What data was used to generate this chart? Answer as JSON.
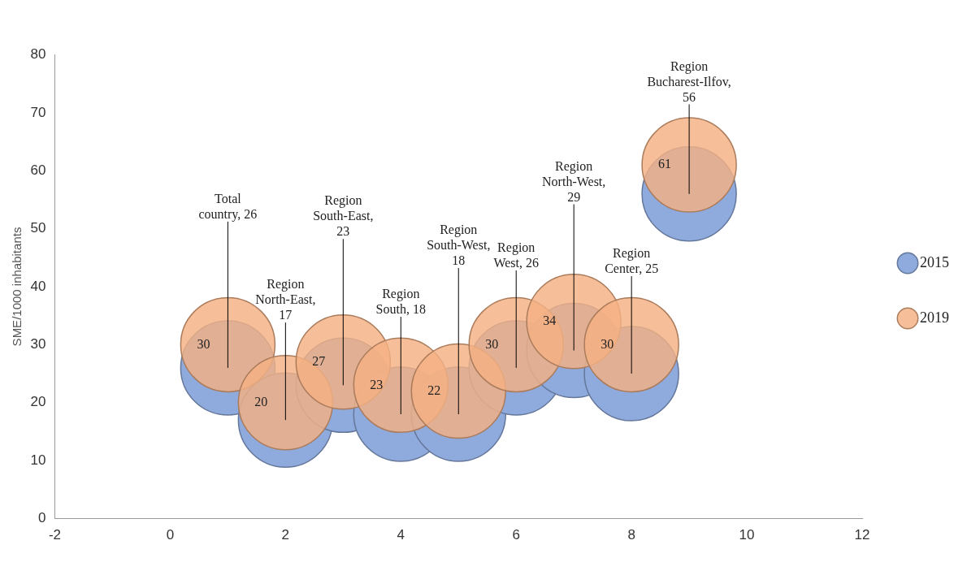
{
  "chart_data": {
    "type": "bubble",
    "ylabel": "SME/1000 inhabitants",
    "x": [
      1,
      2,
      3,
      4,
      5,
      6,
      7,
      8,
      9
    ],
    "xlim": [
      -2,
      12
    ],
    "xticks": [
      -2,
      0,
      2,
      4,
      6,
      8,
      10,
      12
    ],
    "ylim": [
      0,
      80
    ],
    "yticks": [
      0,
      10,
      20,
      30,
      40,
      50,
      60,
      70,
      80
    ],
    "legend": "right",
    "grid": false,
    "series": [
      {
        "name": "2015",
        "color": "#8faadc",
        "values": [
          26,
          17,
          23,
          18,
          18,
          26,
          29,
          25,
          56
        ],
        "sizes": [
          1,
          1,
          1,
          1,
          1,
          1,
          1,
          1,
          1
        ],
        "value_labels": [
          "Total country, 26",
          "Region North-East, 17",
          "Region South-East, 23",
          "Region South, 18",
          "Region South-West, 18",
          "Region West, 26",
          "Region North-West, 29",
          "Region Center, 25",
          "Region Bucharest-Ilfov, 56"
        ]
      },
      {
        "name": "2019",
        "color": "#f4b183",
        "values": [
          30,
          20,
          27,
          23,
          22,
          30,
          34,
          30,
          61
        ],
        "sizes": [
          1,
          1,
          1,
          1,
          1,
          1,
          1,
          1,
          1
        ],
        "value_labels": [
          "30",
          "20",
          "27",
          "23",
          "22",
          "30",
          "34",
          "30",
          "61"
        ]
      }
    ]
  }
}
